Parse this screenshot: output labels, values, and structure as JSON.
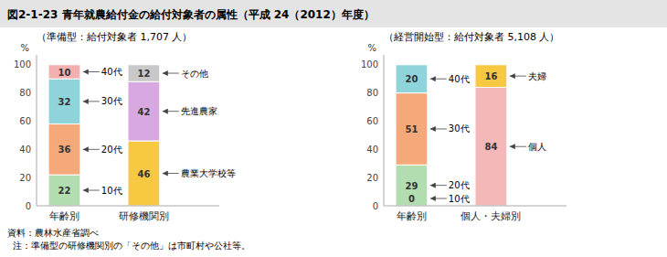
{
  "title": "図2-1-23  青年就農給付金の給付対象者の属性（平成 24（2012）年度）",
  "notes": [
    "資料：農林水産省調べ",
    "  注：準備型の研修機関別の「その他」は市町村や公社等。"
  ],
  "chart_data": [
    {
      "type": "bar",
      "stacked": true,
      "data_labels": true,
      "title": "（準備型：給付対象者 1,707 人）",
      "ylabel": "%",
      "categories": [
        "年齢別",
        "研修機関別"
      ],
      "ylim": [
        0,
        107
      ],
      "yticks": [
        0,
        20,
        40,
        60,
        80,
        100
      ],
      "series": [
        {
          "name": "10代",
          "color": "#b2ddb0",
          "values": [
            22,
            null
          ]
        },
        {
          "name": "20代",
          "color": "#f5a97a",
          "values": [
            36,
            null
          ]
        },
        {
          "name": "30代",
          "color": "#8fd4da",
          "values": [
            32,
            null
          ]
        },
        {
          "name": "40代",
          "color": "#f2b0b0",
          "values": [
            10,
            null
          ]
        },
        {
          "name": "農業大学校等",
          "color": "#f7c842",
          "values": [
            null,
            46
          ]
        },
        {
          "name": "先進農家",
          "color": "#d8a8e0",
          "values": [
            null,
            42
          ]
        },
        {
          "name": "その他",
          "color": "#c8c8c8",
          "values": [
            null,
            12
          ]
        }
      ]
    },
    {
      "type": "bar",
      "stacked": true,
      "data_labels": true,
      "title": "（経営開始型：給付対象者 5,108 人）",
      "ylabel": "%",
      "categories": [
        "年齢別",
        "個人・夫婦別"
      ],
      "ylim": [
        0,
        107
      ],
      "yticks": [
        0,
        20,
        40,
        60,
        80,
        100
      ],
      "series": [
        {
          "name": "10代",
          "color": "#b2ddb0",
          "values": [
            0,
            null
          ]
        },
        {
          "name": "20代",
          "color": "#b2ddb0",
          "values": [
            29,
            null
          ]
        },
        {
          "name": "30代",
          "color": "#f5a97a",
          "values": [
            51,
            null
          ]
        },
        {
          "name": "40代",
          "color": "#8fd4da",
          "values": [
            20,
            null
          ]
        },
        {
          "name": "個人",
          "color": "#f5b8b8",
          "values": [
            null,
            84
          ]
        },
        {
          "name": "夫婦",
          "color": "#f7c842",
          "values": [
            null,
            16
          ]
        }
      ]
    }
  ]
}
